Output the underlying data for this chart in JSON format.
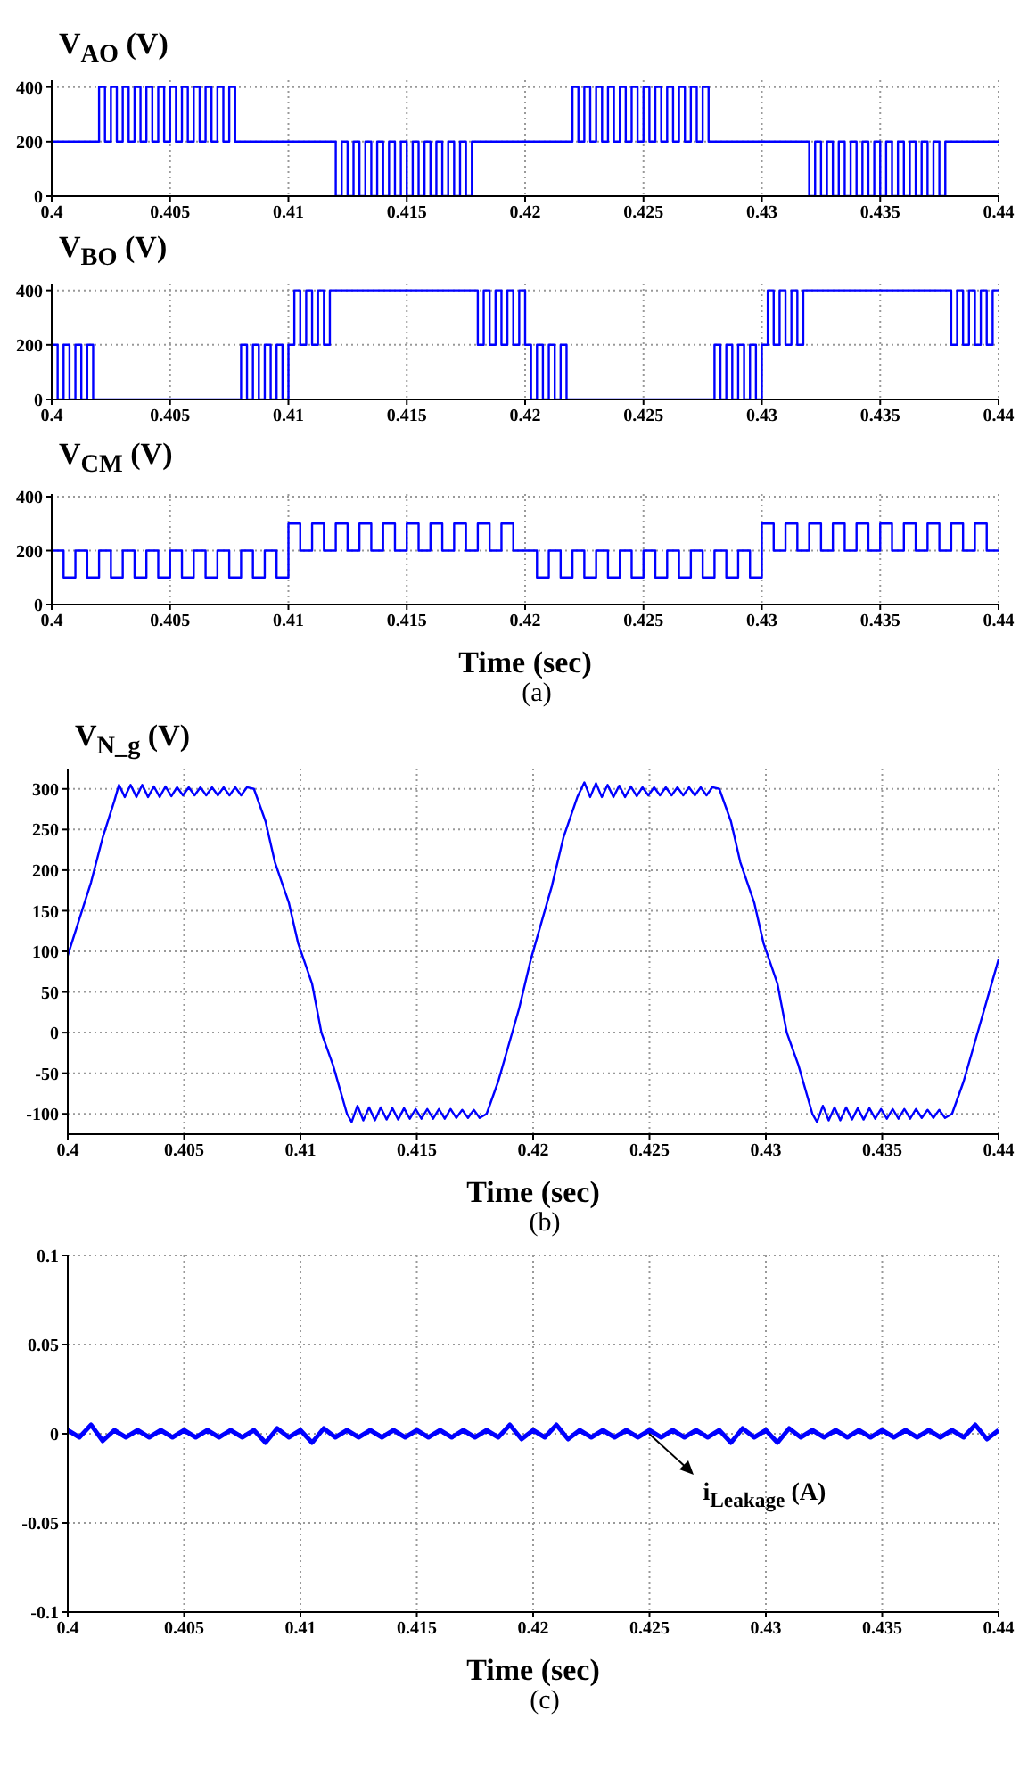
{
  "chart_data": [
    {
      "type": "step",
      "title": "V$_{AO}$ (V)",
      "color": "#0000ff",
      "grid": true,
      "marker": "none",
      "xlim": [
        0.4,
        0.44
      ],
      "xticks": [
        0.4,
        0.405,
        0.41,
        0.415,
        0.42,
        0.425,
        0.43,
        0.435,
        0.44
      ],
      "ylim": [
        0,
        425
      ],
      "yticks": [
        0,
        200,
        400
      ],
      "x": [
        0.4,
        0.402,
        0.40225,
        0.4025,
        0.40275,
        0.403,
        0.40325,
        0.4035,
        0.40375,
        0.404,
        0.40425,
        0.4045,
        0.40475,
        0.405,
        0.40525,
        0.4055,
        0.40575,
        0.406,
        0.40625,
        0.4065,
        0.40675,
        0.407,
        0.40725,
        0.4075,
        0.40775,
        0.412,
        0.41225,
        0.4125,
        0.41275,
        0.413,
        0.41325,
        0.4135,
        0.41375,
        0.414,
        0.41425,
        0.4145,
        0.41475,
        0.415,
        0.41525,
        0.4155,
        0.41575,
        0.416,
        0.41625,
        0.4165,
        0.41675,
        0.417,
        0.41725,
        0.4175,
        0.41775,
        0.422,
        0.42225,
        0.4225,
        0.42275,
        0.423,
        0.42325,
        0.4235,
        0.42375,
        0.424,
        0.42425,
        0.4245,
        0.42475,
        0.425,
        0.42525,
        0.4255,
        0.42575,
        0.426,
        0.42625,
        0.4265,
        0.42675,
        0.427,
        0.42725,
        0.4275,
        0.42775,
        0.432,
        0.43225,
        0.4325,
        0.43275,
        0.433,
        0.43325,
        0.4335,
        0.43375,
        0.434,
        0.43425,
        0.4345,
        0.43475,
        0.435,
        0.43525,
        0.4355,
        0.43575,
        0.436,
        0.43625,
        0.4365,
        0.43675,
        0.437,
        0.43725,
        0.4375,
        0.43775,
        0.44
      ],
      "values": [
        200,
        400,
        200,
        400,
        200,
        400,
        200,
        400,
        200,
        400,
        200,
        400,
        200,
        400,
        200,
        400,
        200,
        400,
        200,
        400,
        200,
        400,
        200,
        400,
        200,
        0,
        200,
        0,
        200,
        0,
        200,
        0,
        200,
        0,
        200,
        0,
        200,
        0,
        200,
        0,
        200,
        0,
        200,
        0,
        200,
        0,
        200,
        0,
        200,
        400,
        200,
        400,
        200,
        400,
        200,
        400,
        200,
        400,
        200,
        400,
        200,
        400,
        200,
        400,
        200,
        400,
        200,
        400,
        200,
        400,
        200,
        400,
        200,
        0,
        200,
        0,
        200,
        0,
        200,
        0,
        200,
        0,
        200,
        0,
        200,
        0,
        200,
        0,
        200,
        0,
        200,
        0,
        200,
        0,
        200,
        0,
        200,
        200
      ]
    },
    {
      "type": "step",
      "title": "V$_{BO}$ (V)",
      "color": "#0000ff",
      "grid": true,
      "marker": "none",
      "xlim": [
        0.4,
        0.44
      ],
      "xticks": [
        0.4,
        0.405,
        0.41,
        0.415,
        0.42,
        0.425,
        0.43,
        0.435,
        0.44
      ],
      "ylim": [
        0,
        425
      ],
      "yticks": [
        0,
        200,
        400
      ],
      "x": [
        0.4,
        0.40025,
        0.4005,
        0.40075,
        0.401,
        0.40125,
        0.4015,
        0.40175,
        0.408,
        0.40825,
        0.4085,
        0.40875,
        0.409,
        0.40925,
        0.4095,
        0.40975,
        0.41,
        0.41025,
        0.4105,
        0.41075,
        0.411,
        0.41125,
        0.4115,
        0.41175,
        0.418,
        0.41825,
        0.4185,
        0.41875,
        0.419,
        0.41925,
        0.4195,
        0.41975,
        0.42,
        0.42025,
        0.4205,
        0.42075,
        0.421,
        0.42125,
        0.4215,
        0.42175,
        0.428,
        0.42825,
        0.4285,
        0.42875,
        0.429,
        0.42925,
        0.4295,
        0.42975,
        0.43,
        0.43025,
        0.4305,
        0.43075,
        0.431,
        0.43125,
        0.4315,
        0.43175,
        0.438,
        0.43825,
        0.4385,
        0.43875,
        0.439,
        0.43925,
        0.4395,
        0.43975,
        0.44
      ],
      "values": [
        200,
        0,
        200,
        0,
        200,
        0,
        200,
        0,
        200,
        0,
        200,
        0,
        200,
        0,
        200,
        0,
        200,
        400,
        200,
        400,
        200,
        400,
        200,
        400,
        200,
        400,
        200,
        400,
        200,
        400,
        200,
        400,
        200,
        0,
        200,
        0,
        200,
        0,
        200,
        0,
        200,
        0,
        200,
        0,
        200,
        0,
        200,
        0,
        200,
        400,
        200,
        400,
        200,
        400,
        200,
        400,
        200,
        400,
        200,
        400,
        200,
        400,
        200,
        400,
        400
      ]
    },
    {
      "type": "step",
      "title": "V$_{CM}$ (V)",
      "xlabel": "Time (sec)",
      "annotations": [
        "(a)"
      ],
      "color": "#0000ff",
      "grid": true,
      "marker": "none",
      "xlim": [
        0.4,
        0.44
      ],
      "xticks": [
        0.4,
        0.405,
        0.41,
        0.415,
        0.42,
        0.425,
        0.43,
        0.435,
        0.44
      ],
      "ylim": [
        0,
        410
      ],
      "yticks": [
        0,
        200,
        400
      ],
      "x": [
        0.4,
        0.4005,
        0.401,
        0.4015,
        0.402,
        0.4025,
        0.403,
        0.4035,
        0.404,
        0.4045,
        0.405,
        0.4055,
        0.406,
        0.4065,
        0.407,
        0.4075,
        0.408,
        0.4085,
        0.409,
        0.4095,
        0.41,
        0.4105,
        0.411,
        0.4115,
        0.412,
        0.4125,
        0.413,
        0.4135,
        0.414,
        0.4145,
        0.415,
        0.4155,
        0.416,
        0.4165,
        0.417,
        0.4175,
        0.418,
        0.4185,
        0.419,
        0.4195,
        0.42,
        0.4205,
        0.421,
        0.4215,
        0.422,
        0.4225,
        0.423,
        0.4235,
        0.424,
        0.4245,
        0.425,
        0.4255,
        0.426,
        0.4265,
        0.427,
        0.4275,
        0.428,
        0.4285,
        0.429,
        0.4295,
        0.43,
        0.4305,
        0.431,
        0.4315,
        0.432,
        0.4325,
        0.433,
        0.4335,
        0.434,
        0.4345,
        0.435,
        0.4355,
        0.436,
        0.4365,
        0.437,
        0.4375,
        0.438,
        0.4385,
        0.439,
        0.4395,
        0.44
      ],
      "values": [
        200,
        100,
        200,
        100,
        200,
        100,
        200,
        100,
        200,
        100,
        200,
        100,
        200,
        100,
        200,
        100,
        200,
        100,
        200,
        100,
        300,
        200,
        300,
        200,
        300,
        200,
        300,
        200,
        300,
        200,
        300,
        200,
        300,
        200,
        300,
        200,
        300,
        200,
        300,
        200,
        200,
        100,
        200,
        100,
        200,
        100,
        200,
        100,
        200,
        100,
        200,
        100,
        200,
        100,
        200,
        100,
        200,
        100,
        200,
        100,
        300,
        200,
        300,
        200,
        300,
        200,
        300,
        200,
        300,
        200,
        300,
        200,
        300,
        200,
        300,
        200,
        300,
        200,
        300,
        200,
        200
      ]
    },
    {
      "type": "line",
      "title": "V$_{N_g}$ (V)",
      "xlabel": "Time (sec)",
      "annotations": [
        "(b)"
      ],
      "color": "#0000ff",
      "grid": true,
      "marker": "none",
      "xlim": [
        0.4,
        0.44
      ],
      "xticks": [
        0.4,
        0.405,
        0.41,
        0.415,
        0.42,
        0.425,
        0.43,
        0.435,
        0.44
      ],
      "ylim": [
        -125,
        325
      ],
      "yticks": [
        -100,
        -50,
        0,
        50,
        100,
        150,
        200,
        250,
        300
      ],
      "x": [
        0.4,
        0.4005,
        0.401,
        0.4015,
        0.402,
        0.4022,
        0.40245,
        0.4027,
        0.40295,
        0.4032,
        0.40345,
        0.4037,
        0.40395,
        0.4042,
        0.40445,
        0.4047,
        0.40495,
        0.4052,
        0.40545,
        0.4057,
        0.40595,
        0.4062,
        0.40645,
        0.4067,
        0.40695,
        0.4072,
        0.40745,
        0.4077,
        0.408,
        0.4085,
        0.4089,
        0.4095,
        0.4099,
        0.4105,
        0.4109,
        0.4114,
        0.412,
        0.4122,
        0.41245,
        0.4127,
        0.41295,
        0.4132,
        0.41345,
        0.4137,
        0.41395,
        0.4142,
        0.41445,
        0.4147,
        0.41495,
        0.4152,
        0.41545,
        0.4157,
        0.41595,
        0.4162,
        0.41645,
        0.4167,
        0.41695,
        0.4172,
        0.41745,
        0.4177,
        0.418,
        0.4185,
        0.419,
        0.4194,
        0.4199,
        0.4203,
        0.4208,
        0.4213,
        0.4219,
        0.4222,
        0.42245,
        0.4227,
        0.42295,
        0.4232,
        0.42345,
        0.4237,
        0.42395,
        0.4242,
        0.42445,
        0.4247,
        0.42495,
        0.4252,
        0.42545,
        0.4257,
        0.42595,
        0.4262,
        0.42645,
        0.4267,
        0.42695,
        0.4272,
        0.42745,
        0.4277,
        0.428,
        0.4285,
        0.4289,
        0.4295,
        0.4299,
        0.4305,
        0.4309,
        0.4314,
        0.432,
        0.4322,
        0.43245,
        0.4327,
        0.43295,
        0.4332,
        0.43345,
        0.4337,
        0.43395,
        0.4342,
        0.43445,
        0.4347,
        0.43495,
        0.4352,
        0.43545,
        0.4357,
        0.43595,
        0.4362,
        0.43645,
        0.4367,
        0.43695,
        0.4372,
        0.43745,
        0.4377,
        0.438,
        0.4385,
        0.439,
        0.4395,
        0.44
      ],
      "values": [
        95,
        140,
        185,
        240,
        285,
        305,
        290,
        305,
        290,
        305,
        290,
        303,
        290,
        303,
        291,
        302,
        292,
        302,
        292,
        302,
        292,
        302,
        292,
        302,
        292,
        302,
        292,
        302,
        300,
        260,
        210,
        160,
        110,
        60,
        0,
        -40,
        -100,
        -110,
        -90,
        -108,
        -92,
        -108,
        -92,
        -107,
        -93,
        -107,
        -93,
        -106,
        -94,
        -106,
        -94,
        -106,
        -94,
        -106,
        -94,
        -105,
        -95,
        -105,
        -95,
        -105,
        -100,
        -60,
        -10,
        30,
        90,
        130,
        180,
        240,
        290,
        308,
        290,
        307,
        290,
        305,
        290,
        304,
        290,
        303,
        291,
        302,
        292,
        302,
        292,
        302,
        292,
        302,
        292,
        302,
        292,
        302,
        292,
        302,
        300,
        260,
        210,
        160,
        110,
        60,
        0,
        -40,
        -100,
        -110,
        -90,
        -108,
        -92,
        -108,
        -92,
        -107,
        -93,
        -107,
        -93,
        -106,
        -94,
        -106,
        -94,
        -106,
        -94,
        -106,
        -94,
        -105,
        -95,
        -105,
        -95,
        -105,
        -100,
        -60,
        -10,
        40,
        90
      ]
    },
    {
      "type": "line",
      "xlabel": "Time (sec)",
      "annotations": [
        {
          "text": "i$_{Leakage}$ (A)",
          "x": 0.425,
          "y": 0
        },
        "(c)"
      ],
      "color": "#0000ff",
      "grid": true,
      "marker": "none",
      "xlim": [
        0.4,
        0.44
      ],
      "xticks": [
        0.4,
        0.405,
        0.41,
        0.415,
        0.42,
        0.425,
        0.43,
        0.435,
        0.44
      ],
      "ylim": [
        -0.1,
        0.1
      ],
      "yticks": [
        -0.1,
        -0.05,
        0,
        0.05,
        0.1
      ],
      "x": [
        0.4,
        0.4005,
        0.401,
        0.4015,
        0.402,
        0.4025,
        0.403,
        0.4035,
        0.404,
        0.4045,
        0.405,
        0.4055,
        0.406,
        0.4065,
        0.407,
        0.4075,
        0.408,
        0.4085,
        0.409,
        0.4095,
        0.41,
        0.4105,
        0.411,
        0.4115,
        0.412,
        0.4125,
        0.413,
        0.4135,
        0.414,
        0.4145,
        0.415,
        0.4155,
        0.416,
        0.4165,
        0.417,
        0.4175,
        0.418,
        0.4185,
        0.419,
        0.4195,
        0.42,
        0.4205,
        0.421,
        0.4215,
        0.422,
        0.4225,
        0.423,
        0.4235,
        0.424,
        0.4245,
        0.425,
        0.4255,
        0.426,
        0.4265,
        0.427,
        0.4275,
        0.428,
        0.4285,
        0.429,
        0.4295,
        0.43,
        0.4305,
        0.431,
        0.4315,
        0.432,
        0.4325,
        0.433,
        0.4335,
        0.434,
        0.4345,
        0.435,
        0.4355,
        0.436,
        0.4365,
        0.437,
        0.4375,
        0.438,
        0.4385,
        0.439,
        0.4395,
        0.44
      ],
      "values": [
        0.002,
        -0.002,
        0.005,
        -0.004,
        0.002,
        -0.002,
        0.002,
        -0.002,
        0.002,
        -0.002,
        0.002,
        -0.002,
        0.002,
        -0.002,
        0.002,
        -0.002,
        0.002,
        -0.005,
        0.003,
        -0.002,
        0.002,
        -0.005,
        0.003,
        -0.002,
        0.002,
        -0.002,
        0.002,
        -0.002,
        0.002,
        -0.002,
        0.002,
        -0.002,
        0.002,
        -0.002,
        0.002,
        -0.002,
        0.002,
        -0.002,
        0.005,
        -0.003,
        0.002,
        -0.002,
        0.005,
        -0.003,
        0.002,
        -0.002,
        0.002,
        -0.002,
        0.002,
        -0.002,
        0.002,
        -0.002,
        0.002,
        -0.002,
        0.002,
        -0.002,
        0.002,
        -0.005,
        0.003,
        -0.002,
        0.002,
        -0.005,
        0.003,
        -0.002,
        0.002,
        -0.002,
        0.002,
        -0.002,
        0.002,
        -0.002,
        0.002,
        -0.002,
        0.002,
        -0.002,
        0.002,
        -0.002,
        0.002,
        -0.002,
        0.005,
        -0.003,
        0.002
      ]
    }
  ]
}
